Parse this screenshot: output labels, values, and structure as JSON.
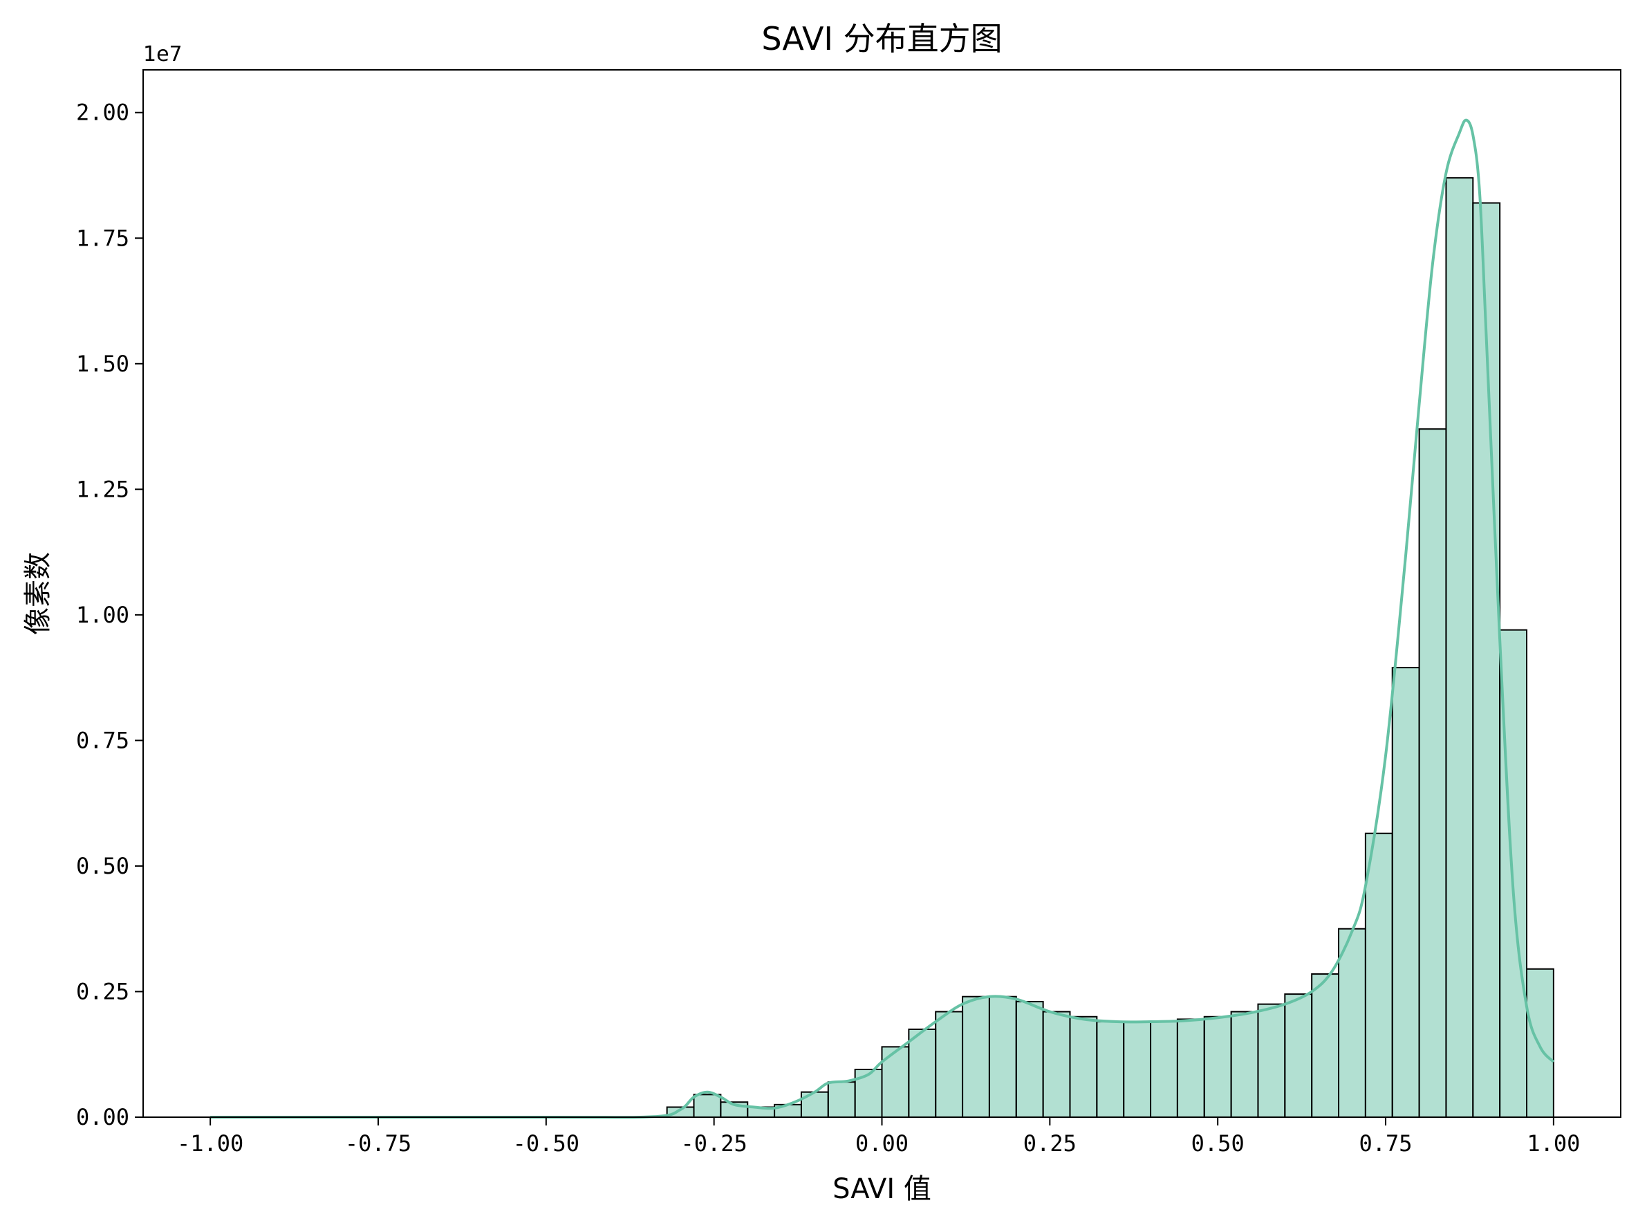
{
  "chart_data": {
    "type": "bar",
    "title": "SAVI 分布直方图",
    "xlabel": "SAVI 值",
    "ylabel": "像素数",
    "y_offset_label": "1e7",
    "xlim": [
      -1.1,
      1.1
    ],
    "ylim": [
      0,
      2.085
    ],
    "x_ticks": [
      -1.0,
      -0.75,
      -0.5,
      -0.25,
      0.0,
      0.25,
      0.5,
      0.75,
      1.0
    ],
    "x_tick_labels": [
      "-1.00",
      "-0.75",
      "-0.50",
      "-0.25",
      "0.00",
      "0.25",
      "0.50",
      "0.75",
      "1.00"
    ],
    "y_ticks": [
      0.0,
      0.25,
      0.5,
      0.75,
      1.0,
      1.25,
      1.5,
      1.75,
      2.0
    ],
    "y_tick_labels": [
      "0.00",
      "0.25",
      "0.50",
      "0.75",
      "1.00",
      "1.25",
      "1.50",
      "1.75",
      "2.00"
    ],
    "grid": false,
    "bar_color": "#66c2a5",
    "bar_fill_opacity": 0.5,
    "bar_edge_color": "#000000",
    "kde_color": "#66c2a5",
    "bins": {
      "edges": [
        -0.32,
        -0.28,
        -0.24,
        -0.2,
        -0.16,
        -0.12,
        -0.08,
        -0.04,
        0.0,
        0.04,
        0.08,
        0.12,
        0.16,
        0.2,
        0.24,
        0.28,
        0.32,
        0.36,
        0.4,
        0.44,
        0.48,
        0.52,
        0.56,
        0.6,
        0.64,
        0.68,
        0.72,
        0.76,
        0.8,
        0.84,
        0.88,
        0.92,
        0.96,
        1.0
      ],
      "values": [
        0.02,
        0.045,
        0.03,
        0.02,
        0.025,
        0.05,
        0.07,
        0.095,
        0.14,
        0.175,
        0.21,
        0.24,
        0.24,
        0.23,
        0.21,
        0.2,
        0.19,
        0.19,
        0.19,
        0.195,
        0.2,
        0.21,
        0.225,
        0.245,
        0.285,
        0.375,
        0.565,
        0.895,
        1.37,
        1.87,
        1.82,
        0.97,
        0.295
      ]
    },
    "kde": {
      "x": [
        -1.0,
        -0.5,
        -0.34,
        -0.3,
        -0.28,
        -0.26,
        -0.24,
        -0.22,
        -0.19,
        -0.16,
        -0.13,
        -0.1,
        -0.08,
        -0.05,
        -0.02,
        0.0,
        0.04,
        0.08,
        0.12,
        0.16,
        0.2,
        0.25,
        0.3,
        0.35,
        0.4,
        0.45,
        0.5,
        0.55,
        0.6,
        0.64,
        0.67,
        0.7,
        0.72,
        0.75,
        0.78,
        0.8,
        0.82,
        0.84,
        0.86,
        0.87,
        0.88,
        0.89,
        0.9,
        0.92,
        0.94,
        0.96,
        0.98,
        1.0
      ],
      "y": [
        0.0,
        0.0,
        0.001,
        0.015,
        0.04,
        0.05,
        0.04,
        0.025,
        0.02,
        0.018,
        0.03,
        0.05,
        0.068,
        0.072,
        0.085,
        0.11,
        0.15,
        0.19,
        0.225,
        0.24,
        0.235,
        0.21,
        0.195,
        0.19,
        0.19,
        0.192,
        0.198,
        0.208,
        0.225,
        0.25,
        0.29,
        0.37,
        0.46,
        0.72,
        1.12,
        1.42,
        1.7,
        1.88,
        1.96,
        1.985,
        1.955,
        1.84,
        1.55,
        0.95,
        0.45,
        0.22,
        0.14,
        0.11
      ]
    }
  }
}
